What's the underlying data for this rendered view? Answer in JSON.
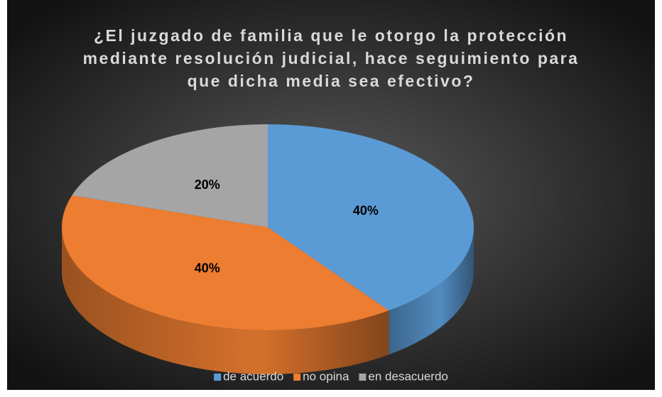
{
  "chart_data": {
    "type": "pie",
    "title": "¿El juzgado de familia que le otorgo la protección mediante resolución judicial, hace seguimiento para que dicha media sea efectivo?",
    "categories": [
      "de acuerdo",
      "no opina",
      "en desacuerdo"
    ],
    "values": [
      40,
      40,
      20
    ],
    "value_labels": [
      "40%",
      "40%",
      "20%"
    ],
    "colors": [
      "#5b9bd5",
      "#ed7d31",
      "#a5a5a5"
    ],
    "legend": "bottom"
  }
}
